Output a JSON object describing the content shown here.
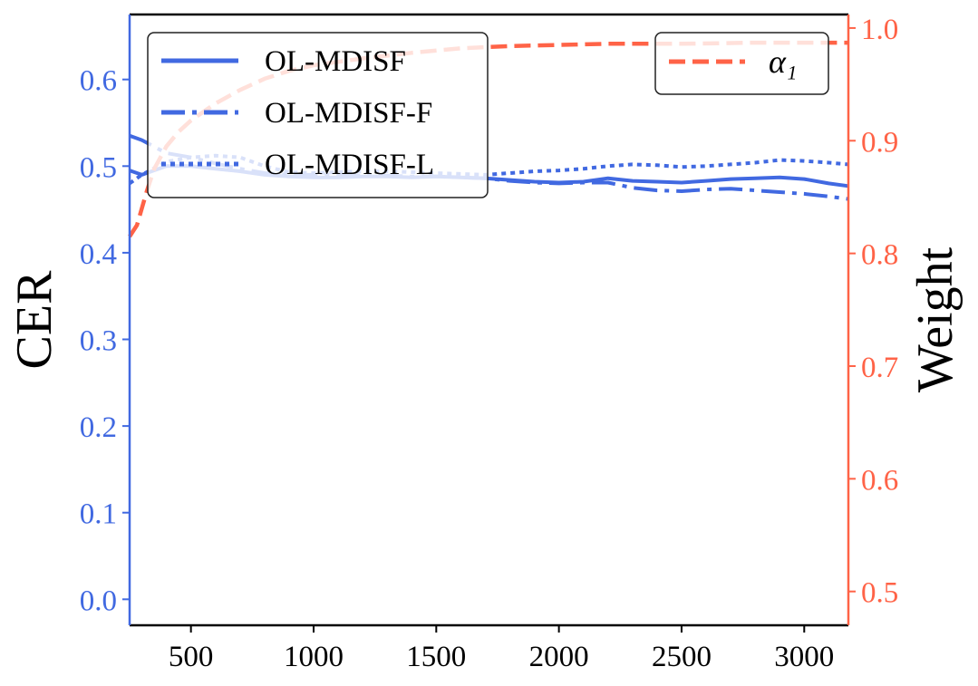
{
  "chart_data": {
    "type": "line",
    "title": "",
    "xlabel": "",
    "ylabel": "CER",
    "ylabel_right": "Weight",
    "xlim": [
      250,
      3180
    ],
    "ylim": [
      -0.03,
      0.675
    ],
    "ylim_right": [
      0.47,
      1.012
    ],
    "x_ticks": [
      "500",
      "1000",
      "1500",
      "2000",
      "2500",
      "3000"
    ],
    "y_ticks": [
      "0.0",
      "0.1",
      "0.2",
      "0.3",
      "0.4",
      "0.5",
      "0.6"
    ],
    "y_ticks_right": [
      "0.5",
      "0.6",
      "0.7",
      "0.8",
      "0.9",
      "1.0"
    ],
    "grid": false,
    "legend_left_position": "top-left",
    "legend_right_position": "top-right",
    "colors": {
      "left_axis": "#4169e1",
      "right_axis": "#ff6347",
      "series_cer": "#4169e1",
      "series_weight": "#ff6347"
    },
    "series": [
      {
        "name": "OL-MDISF",
        "style": "solid",
        "axis": "left",
        "x": [
          250,
          300,
          400,
          500,
          600,
          700,
          800,
          900,
          1000,
          1100,
          1200,
          1300,
          1400,
          1500,
          1600,
          1700,
          1800,
          1900,
          2000,
          2100,
          2200,
          2300,
          2400,
          2500,
          2600,
          2700,
          2800,
          2900,
          3000,
          3100,
          3180
        ],
        "values": [
          0.495,
          0.49,
          0.5,
          0.5,
          0.497,
          0.494,
          0.49,
          0.488,
          0.487,
          0.487,
          0.488,
          0.488,
          0.487,
          0.488,
          0.487,
          0.486,
          0.484,
          0.482,
          0.481,
          0.482,
          0.486,
          0.483,
          0.482,
          0.481,
          0.483,
          0.485,
          0.486,
          0.487,
          0.485,
          0.48,
          0.477
        ]
      },
      {
        "name": "OL-MDISF-F",
        "style": "dashdot",
        "axis": "left",
        "x": [
          250,
          300,
          400,
          500,
          600,
          700,
          800,
          900,
          1000,
          1100,
          1200,
          1300,
          1400,
          1500,
          1600,
          1700,
          1800,
          1900,
          2000,
          2100,
          2200,
          2300,
          2400,
          2500,
          2600,
          2700,
          2800,
          2900,
          3000,
          3100,
          3180
        ],
        "values": [
          0.535,
          0.53,
          0.515,
          0.51,
          0.503,
          0.497,
          0.492,
          0.49,
          0.49,
          0.49,
          0.489,
          0.489,
          0.488,
          0.488,
          0.487,
          0.486,
          0.483,
          0.481,
          0.48,
          0.481,
          0.481,
          0.475,
          0.472,
          0.471,
          0.473,
          0.474,
          0.472,
          0.47,
          0.468,
          0.465,
          0.462
        ]
      },
      {
        "name": "OL-MDISF-L",
        "style": "dotted",
        "axis": "left",
        "x": [
          250,
          300,
          400,
          500,
          600,
          700,
          800,
          900,
          1000,
          1100,
          1200,
          1300,
          1400,
          1500,
          1600,
          1700,
          1800,
          1900,
          2000,
          2100,
          2200,
          2300,
          2400,
          2500,
          2600,
          2700,
          2800,
          2900,
          3000,
          3100,
          3180
        ],
        "values": [
          0.48,
          0.49,
          0.505,
          0.51,
          0.512,
          0.51,
          0.5,
          0.493,
          0.492,
          0.493,
          0.494,
          0.494,
          0.493,
          0.492,
          0.491,
          0.49,
          0.492,
          0.494,
          0.495,
          0.497,
          0.5,
          0.502,
          0.501,
          0.499,
          0.5,
          0.502,
          0.504,
          0.507,
          0.506,
          0.504,
          0.502
        ]
      },
      {
        "name": "α₁",
        "style": "dashed",
        "axis": "right",
        "x": [
          250,
          280,
          300,
          320,
          350,
          400,
          450,
          500,
          600,
          700,
          800,
          900,
          1000,
          1200,
          1400,
          1600,
          1800,
          2000,
          2200,
          2500,
          2800,
          3000,
          3180
        ],
        "values": [
          0.815,
          0.825,
          0.84,
          0.855,
          0.875,
          0.895,
          0.908,
          0.918,
          0.933,
          0.945,
          0.955,
          0.962,
          0.967,
          0.973,
          0.978,
          0.982,
          0.984,
          0.985,
          0.986,
          0.986,
          0.987,
          0.987,
          0.987
        ]
      }
    ]
  }
}
